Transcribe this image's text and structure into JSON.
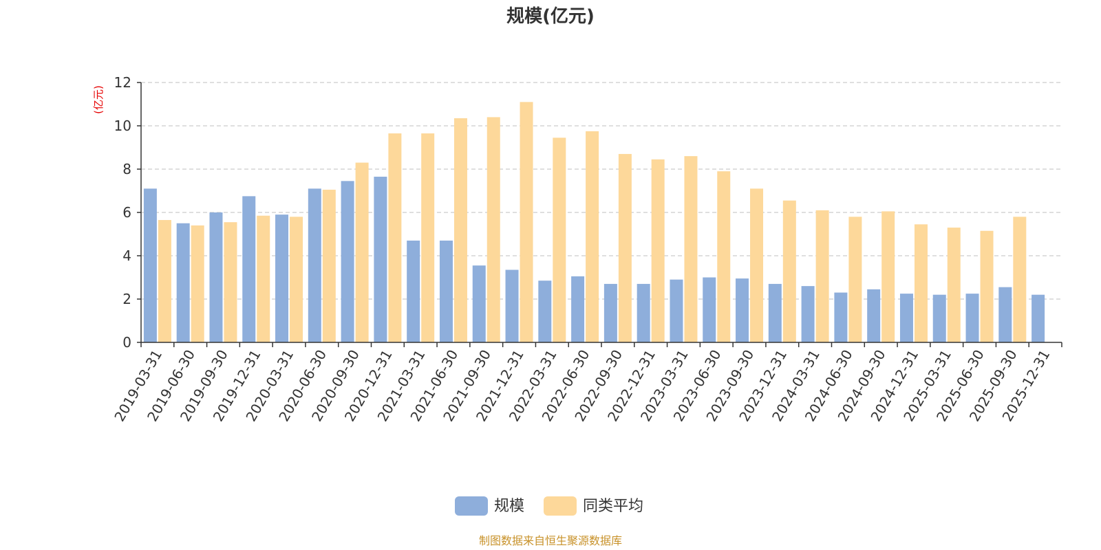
{
  "chart_data": {
    "type": "bar",
    "title": "规模(亿元)",
    "ylabel": "(亿元)",
    "xlabel": "",
    "ylim": [
      0,
      12
    ],
    "yticks": [
      0,
      2,
      4,
      6,
      8,
      10,
      12
    ],
    "grid": true,
    "legend_position": "bottom-center",
    "categories": [
      "2019-03-31",
      "2019-06-30",
      "2019-09-30",
      "2019-12-31",
      "2020-03-31",
      "2020-06-30",
      "2020-09-30",
      "2020-12-31",
      "2021-03-31",
      "2021-06-30",
      "2021-09-30",
      "2021-12-31",
      "2022-03-31",
      "2022-06-30",
      "2022-09-30",
      "2022-12-31",
      "2023-03-31",
      "2023-06-30",
      "2023-09-30",
      "2023-12-31",
      "2024-03-31",
      "2024-06-30",
      "2024-09-30",
      "2024-12-31",
      "2025-03-31",
      "2025-06-30",
      "2025-09-30",
      "2025-12-31"
    ],
    "series": [
      {
        "name": "规模",
        "color": "#8eaedb",
        "values": [
          7.1,
          5.5,
          6.0,
          6.75,
          5.9,
          7.1,
          7.45,
          7.65,
          4.7,
          4.7,
          3.55,
          3.35,
          2.85,
          3.05,
          2.7,
          2.7,
          2.9,
          3.0,
          2.95,
          2.7,
          2.6,
          2.3,
          2.45,
          2.25,
          2.2,
          2.25,
          2.55,
          2.2
        ]
      },
      {
        "name": "同类平均",
        "color": "#fdd89a",
        "values": [
          5.65,
          5.4,
          5.55,
          5.85,
          5.8,
          7.05,
          8.3,
          9.65,
          9.65,
          10.35,
          10.4,
          11.1,
          9.45,
          9.75,
          8.7,
          8.45,
          8.6,
          7.9,
          7.1,
          6.55,
          6.1,
          5.8,
          6.05,
          5.45,
          5.3,
          5.15,
          5.8,
          null
        ]
      }
    ]
  },
  "source": "制图数据来自恒生聚源数据库"
}
